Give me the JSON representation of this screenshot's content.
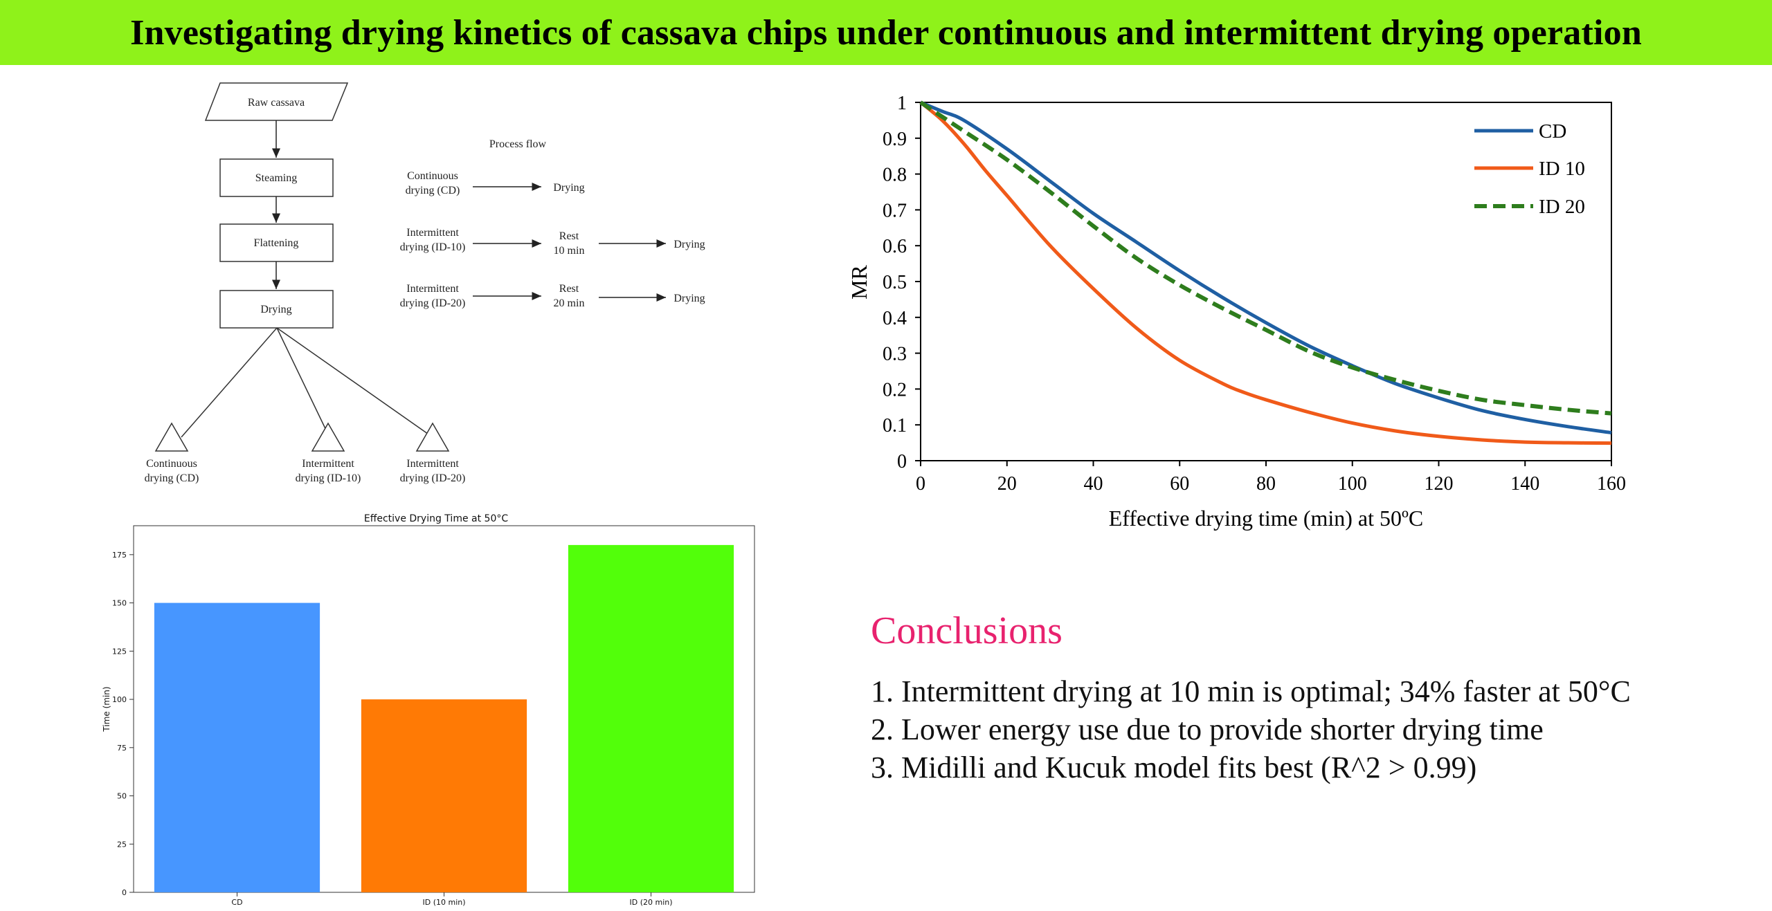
{
  "title": "Investigating drying kinetics of cassava chips under continuous and intermittent drying operation",
  "colors": {
    "banner": "#8ff21a",
    "conclusions_heading": "#e8226e",
    "cd": "#1f5fa3",
    "id10": "#f05a19",
    "id20": "#2e7d1d",
    "bar_cd": "#4796ff",
    "bar_id10": "#ff7a05",
    "bar_id20": "#52ff0a"
  },
  "flowchart": {
    "nodes": [
      "Raw cassava",
      "Steaming",
      "Flattening",
      "Drying"
    ],
    "outputs": [
      [
        "Continuous",
        "drying (CD)"
      ],
      [
        "Intermittent",
        "drying (ID-10)"
      ],
      [
        "Intermittent",
        "drying (ID-20)"
      ]
    ],
    "process_title": "Process flow",
    "rows": [
      {
        "source": [
          "Continuous",
          "drying (CD)"
        ],
        "rest": [],
        "end": "Drying"
      },
      {
        "source": [
          "Intermittent",
          "drying (ID-10)"
        ],
        "rest": [
          "Rest",
          "10 min"
        ],
        "end": "Drying"
      },
      {
        "source": [
          "Intermittent",
          "drying (ID-20)"
        ],
        "rest": [
          "Rest",
          "20 min"
        ],
        "end": "Drying"
      }
    ]
  },
  "chart_data": [
    {
      "type": "line",
      "title": "",
      "xlabel": "Effective drying time (min) at 50ºC",
      "ylabel": "MR",
      "xlim": [
        0,
        160
      ],
      "ylim": [
        0,
        1
      ],
      "xticks": [
        0,
        20,
        40,
        60,
        80,
        100,
        120,
        140,
        160
      ],
      "yticks": [
        0,
        0.1,
        0.2,
        0.3,
        0.4,
        0.5,
        0.6,
        0.7,
        0.8,
        0.9,
        1
      ],
      "legend_position": "top-right",
      "grid": false,
      "series": [
        {
          "name": "CD",
          "style": "solid",
          "color": "#1f5fa3",
          "x": [
            0,
            5,
            10,
            20,
            30,
            40,
            50,
            60,
            70,
            80,
            90,
            100,
            110,
            120,
            130,
            140,
            150,
            160
          ],
          "y": [
            1,
            0.975,
            0.95,
            0.87,
            0.78,
            0.69,
            0.61,
            0.53,
            0.455,
            0.385,
            0.32,
            0.265,
            0.215,
            0.175,
            0.14,
            0.115,
            0.095,
            0.078
          ]
        },
        {
          "name": "ID 10",
          "style": "solid",
          "color": "#f05a19",
          "x": [
            0,
            5,
            10,
            15,
            20,
            30,
            40,
            50,
            60,
            70,
            75,
            80,
            90,
            100,
            110,
            120,
            130,
            140,
            150,
            160
          ],
          "y": [
            1,
            0.95,
            0.885,
            0.81,
            0.74,
            0.6,
            0.48,
            0.37,
            0.28,
            0.215,
            0.19,
            0.17,
            0.135,
            0.105,
            0.083,
            0.068,
            0.058,
            0.052,
            0.05,
            0.049
          ]
        },
        {
          "name": "ID 20",
          "style": "dashed",
          "color": "#2e7d1d",
          "x": [
            0,
            5,
            10,
            20,
            30,
            40,
            50,
            60,
            70,
            80,
            90,
            100,
            110,
            120,
            130,
            140,
            150,
            160
          ],
          "y": [
            1,
            0.96,
            0.92,
            0.84,
            0.75,
            0.655,
            0.565,
            0.49,
            0.425,
            0.365,
            0.305,
            0.26,
            0.225,
            0.195,
            0.17,
            0.155,
            0.142,
            0.132
          ]
        }
      ]
    },
    {
      "type": "bar",
      "title": "Effective Drying Time at 50°C",
      "xlabel": "",
      "ylabel": "Time (min)",
      "categories": [
        "CD",
        "ID (10 min)",
        "ID (20 min)"
      ],
      "values": [
        150,
        100,
        180
      ],
      "ylim": [
        0,
        190
      ],
      "yticks": [
        0,
        25,
        50,
        75,
        100,
        125,
        150,
        175
      ],
      "colors": [
        "#4796ff",
        "#ff7a05",
        "#52ff0a"
      ],
      "grid": false
    }
  ],
  "conclusions": {
    "heading": "Conclusions",
    "items": [
      "1. Intermittent drying at 10 min is optimal; 34% faster at 50°C",
      "2. Lower energy use due to provide shorter drying time",
      "3. Midilli and Kucuk model fits best (R^2 > 0.99)"
    ]
  }
}
